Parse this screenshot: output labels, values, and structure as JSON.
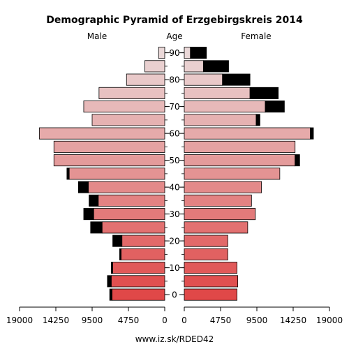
{
  "chart_data": {
    "type": "bar",
    "title": "Demographic Pyramid of Erzgebirgskreis 2014",
    "left_label": "Male",
    "center_label": "Age",
    "right_label": "Female",
    "footer": "www.iz.sk/RDED42",
    "xlim": [
      0,
      19000
    ],
    "x_ticks_left": [
      "19000",
      "14250",
      "9500",
      "4750",
      "0"
    ],
    "x_ticks_right": [
      "0",
      "4750",
      "9500",
      "14250",
      "19000"
    ],
    "x_tick_values": [
      19000,
      14250,
      9500,
      4750,
      0
    ],
    "age_labels": [
      {
        "age": 0,
        "label": "0"
      },
      {
        "age": 10,
        "label": "10"
      },
      {
        "age": 20,
        "label": "20"
      },
      {
        "age": 30,
        "label": "30"
      },
      {
        "age": 40,
        "label": "40"
      },
      {
        "age": 50,
        "label": "50"
      },
      {
        "age": 60,
        "label": "60"
      },
      {
        "age": 70,
        "label": "70"
      },
      {
        "age": 80,
        "label": "80"
      },
      {
        "age": 90,
        "label": "90"
      }
    ],
    "age_groups": [
      "0-4",
      "5-9",
      "10-14",
      "15-19",
      "20-24",
      "25-29",
      "30-34",
      "35-39",
      "40-44",
      "45-49",
      "50-54",
      "55-59",
      "60-64",
      "65-69",
      "70-74",
      "75-79",
      "80-84",
      "85-89",
      "90-94"
    ],
    "series": [
      {
        "name": "Male",
        "values": [
          6900,
          7000,
          6800,
          5700,
          5600,
          8200,
          9300,
          8700,
          10000,
          12500,
          14500,
          14500,
          16400,
          9500,
          10600,
          8600,
          5000,
          2600,
          800
        ]
      },
      {
        "name": "Male (excess)",
        "values": [
          300,
          500,
          200,
          200,
          1200,
          1500,
          1300,
          1200,
          1300,
          300,
          0,
          0,
          0,
          0,
          0,
          0,
          0,
          0,
          0
        ]
      },
      {
        "name": "Female",
        "values": [
          6900,
          7000,
          6900,
          5700,
          5700,
          8300,
          9300,
          8800,
          10100,
          12500,
          14500,
          14500,
          16500,
          9400,
          10600,
          8600,
          5000,
          2500,
          800
        ]
      },
      {
        "name": "Female (excess)",
        "values": [
          0,
          0,
          0,
          0,
          0,
          0,
          0,
          0,
          0,
          0,
          600,
          0,
          400,
          500,
          2500,
          3700,
          3600,
          3300,
          2100
        ]
      }
    ],
    "colors": {
      "young": "#e04848",
      "middle": "#e49a9a",
      "old": "#ead8d8",
      "excess": "#000000",
      "axis": "#000000"
    },
    "grid": false
  }
}
